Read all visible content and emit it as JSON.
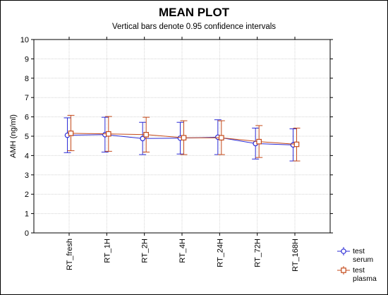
{
  "chart_data": {
    "type": "line",
    "title": "MEAN PLOT",
    "subtitle": "Vertical bars denote 0.95 confidence intervals",
    "xlabel": "",
    "ylabel": "AMH (ng/ml)",
    "ylim": [
      0,
      10
    ],
    "yticks": [
      0,
      1,
      2,
      3,
      4,
      5,
      6,
      7,
      8,
      9,
      10
    ],
    "grid": true,
    "legend_position": "bottom-right",
    "categories": [
      "RT_fresh",
      "RT_1H",
      "RT_2H",
      "RT_4H",
      "RT_24H",
      "RT_72H",
      "RT_168H"
    ],
    "series": [
      {
        "name": "test serum",
        "legend_lines": [
          "test",
          "serum"
        ],
        "color": "#2b2bd6",
        "marker": "circle",
        "values": [
          5.05,
          5.08,
          4.88,
          4.9,
          4.95,
          4.62,
          4.55
        ],
        "lower": [
          4.15,
          4.18,
          4.05,
          4.08,
          4.05,
          3.82,
          3.72
        ],
        "upper": [
          5.95,
          5.98,
          5.72,
          5.72,
          5.85,
          5.42,
          5.38
        ]
      },
      {
        "name": "test plasma",
        "legend_lines": [
          "test",
          "plasma"
        ],
        "color": "#c44a1a",
        "marker": "square",
        "values": [
          5.15,
          5.12,
          5.08,
          4.92,
          4.92,
          4.72,
          4.58
        ],
        "lower": [
          4.25,
          4.22,
          4.18,
          4.05,
          4.05,
          3.9,
          3.72
        ],
        "upper": [
          6.08,
          6.02,
          5.98,
          5.8,
          5.8,
          5.55,
          5.42
        ]
      }
    ]
  }
}
